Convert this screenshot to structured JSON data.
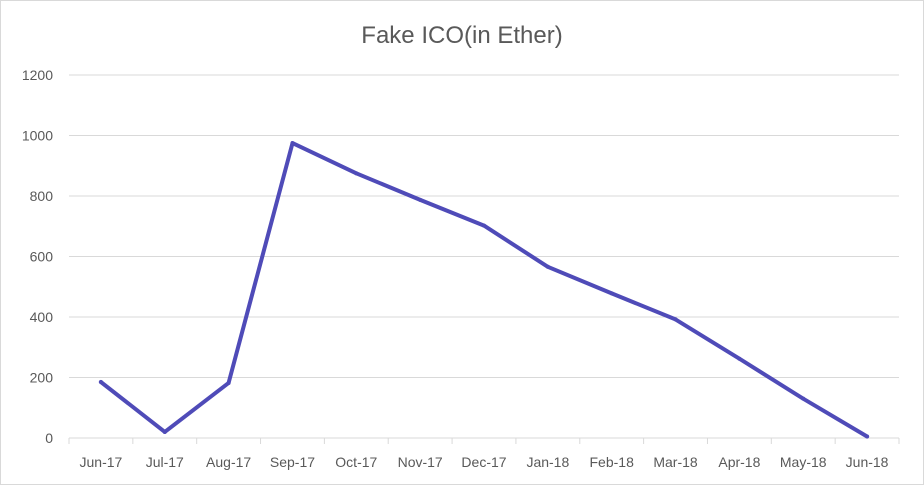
{
  "chart_data": {
    "type": "line",
    "title": "Fake ICO(in Ether)",
    "categories": [
      "Jun-17",
      "Jul-17",
      "Aug-17",
      "Sep-17",
      "Oct-17",
      "Nov-17",
      "Dec-17",
      "Jan-18",
      "Feb-18",
      "Mar-18",
      "Apr-18",
      "May-18",
      "Jun-18"
    ],
    "series": [
      {
        "values": [
          185,
          20,
          182,
          975,
          875,
          787,
          702,
          566,
          478,
          392,
          262,
          130,
          5
        ],
        "color": "#4f4bb8"
      }
    ],
    "yticks": [
      0,
      200,
      400,
      600,
      800,
      1000,
      1200
    ],
    "ylim": [
      0,
      1200
    ],
    "xlabel": "",
    "ylabel": "",
    "grid": true,
    "legend": "none"
  }
}
